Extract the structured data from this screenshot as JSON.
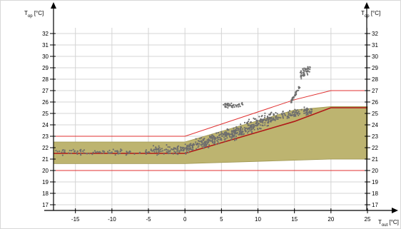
{
  "chart_data": {
    "type": "scatter",
    "title": "",
    "y_label_main": "T",
    "y_label_sub": "op",
    "y_label_unit": "[°C]",
    "x_label_main": "T",
    "x_label_sub": "out",
    "x_label_unit": "[°C]",
    "xlim": [
      -18,
      25
    ],
    "ylim": [
      16.5,
      32.5
    ],
    "x_ticks": [
      -15,
      -10,
      -5,
      0,
      5,
      10,
      15,
      20,
      25
    ],
    "y_ticks": [
      17,
      18,
      19,
      20,
      21,
      22,
      23,
      24,
      25,
      26,
      27,
      28,
      29,
      30,
      31,
      32
    ],
    "grid": true,
    "colors": {
      "band_fill": "#bdb470",
      "band_stroke": "#9e9650",
      "limit_line": "#e03030",
      "setpoint_line": "#b01818",
      "points": "#6e6e6e",
      "grid": "#d4d4d4",
      "axis": "#000000"
    },
    "comfort_band": {
      "upper": [
        [
          -18,
          22.5
        ],
        [
          0,
          22.5
        ],
        [
          15,
          25.3
        ],
        [
          20,
          25.6
        ],
        [
          25,
          25.6
        ]
      ],
      "lower": [
        [
          -18,
          20.6
        ],
        [
          0,
          20.6
        ],
        [
          10,
          20.8
        ],
        [
          20,
          21.0
        ],
        [
          25,
          21.0
        ]
      ]
    },
    "series": [
      {
        "points": [
          [
            -18,
            23.0
          ],
          [
            0,
            23.0
          ],
          [
            15,
            26.2
          ],
          [
            20,
            27.0
          ],
          [
            25,
            27.0
          ]
        ]
      },
      {
        "points": [
          [
            -18,
            21.5
          ],
          [
            0,
            21.5
          ],
          [
            15,
            24.3
          ],
          [
            20,
            25.5
          ],
          [
            25,
            25.5
          ]
        ]
      },
      {
        "points": [
          [
            -18,
            20.0
          ],
          [
            25,
            20.0
          ]
        ]
      }
    ],
    "scatter_clusters": [
      {
        "x0": -18,
        "x1": -5,
        "y_base": 21.6,
        "slope": 0.0,
        "spread": 0.35,
        "n": 90
      },
      {
        "x0": -5,
        "x1": 0,
        "y_base": 21.8,
        "slope": 0.0,
        "spread": 0.55,
        "n": 90
      },
      {
        "x0": 0,
        "x1": 6,
        "y_base": 21.9,
        "slope": 0.22,
        "spread": 0.7,
        "n": 200
      },
      {
        "x0": 6,
        "x1": 12,
        "y_base": 23.0,
        "slope": 0.28,
        "spread": 0.8,
        "n": 220
      },
      {
        "x0": 12,
        "x1": 17.5,
        "y_base": 24.6,
        "slope": 0.12,
        "spread": 0.55,
        "n": 120
      },
      {
        "x0": 5,
        "x1": 8,
        "y_base": 25.7,
        "slope": 0.0,
        "spread": 0.35,
        "n": 40
      },
      {
        "x0": 14.5,
        "x1": 15.8,
        "y_base": 26.0,
        "slope": 1.1,
        "spread": 0.25,
        "n": 40
      },
      {
        "x0": 15.8,
        "x1": 17.2,
        "y_base": 28.3,
        "slope": 0.5,
        "spread": 0.6,
        "n": 45
      }
    ]
  }
}
